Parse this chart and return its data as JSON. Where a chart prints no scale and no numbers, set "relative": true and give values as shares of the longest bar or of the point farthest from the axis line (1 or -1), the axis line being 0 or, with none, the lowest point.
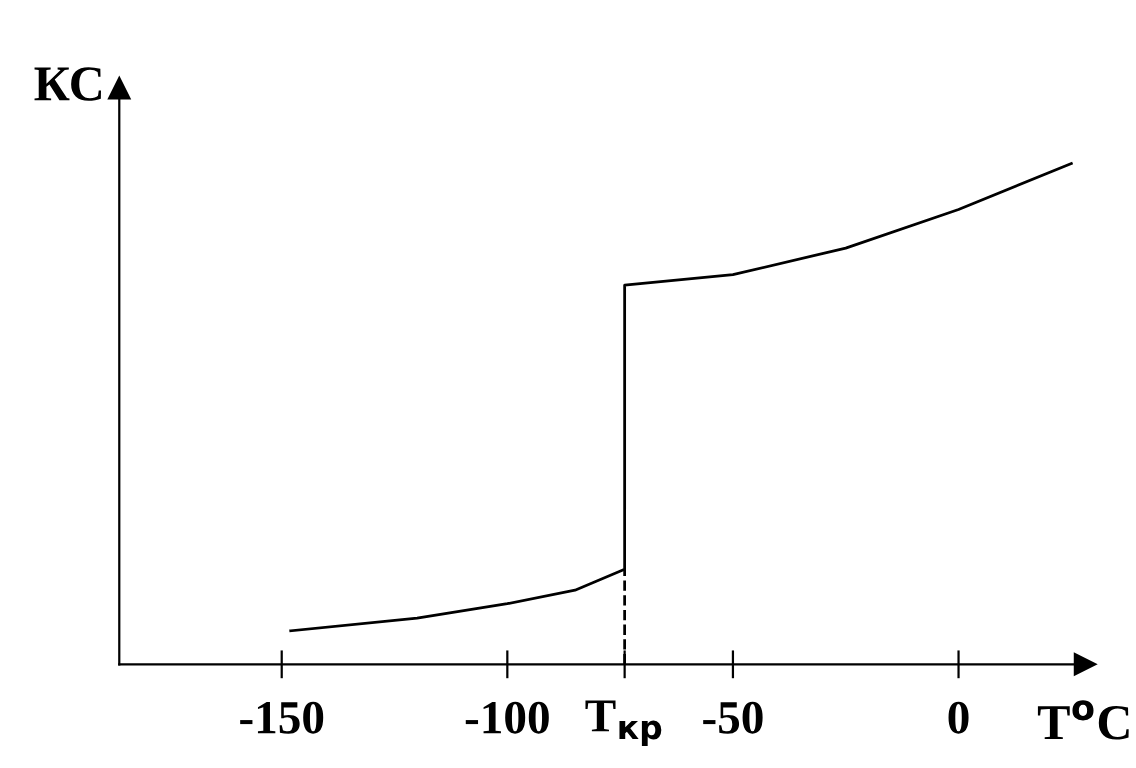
{
  "chart_data": {
    "type": "line",
    "relative": true,
    "xlabel": "T$^{o}$C",
    "ylabel": "КС",
    "series": [
      {
        "color": "#000000",
        "x": [
          -148,
          -120,
          -100,
          -85,
          -74,
          -74,
          -50,
          -25,
          0,
          25
        ],
        "values": [
          0.067,
          0.092,
          0.121,
          0.148,
          0.19,
          0.757,
          0.778,
          0.831,
          0.908,
          1
        ]
      }
    ],
    "xlim": [
      -186,
      28
    ],
    "xticks": [
      -150,
      -100,
      {
        "value": -74,
        "label": "T$_{кр}$"
      },
      -50,
      0
    ],
    "ref_lines": [
      {
        "axis": "x",
        "value": -74,
        "line_style": "dashed",
        "color": "#000000"
      }
    ],
    "grid": false,
    "legend": false,
    "marker": "none",
    "line_style": "solid"
  }
}
